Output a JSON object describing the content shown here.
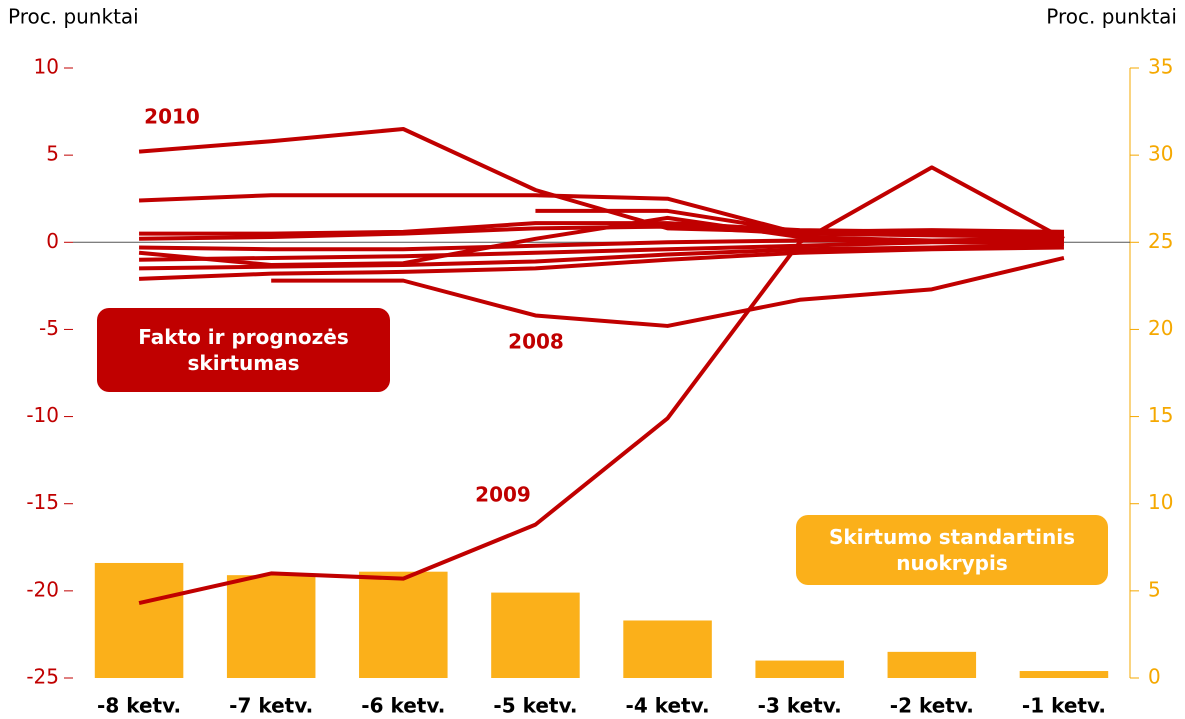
{
  "chart_data": {
    "type": "combo",
    "ylabel": "Proc. punktai",
    "y2label": "Proc. punktai",
    "categories": [
      "-8 ketv.",
      "-7 ketv.",
      "-6 ketv.",
      "-5 ketv.",
      "-4 ketv.",
      "-3 ketv.",
      "-2 ketv.",
      "-1 ketv."
    ],
    "ylim": [
      -25,
      10
    ],
    "yticks": [
      -25,
      -20,
      -15,
      -10,
      -5,
      0,
      5,
      10
    ],
    "y2lim": [
      0,
      35
    ],
    "y2ticks": [
      0,
      5,
      10,
      15,
      20,
      25,
      30,
      35
    ],
    "y_color": "#c00000",
    "y2_color": "#f5a800",
    "series": [
      {
        "type": "bar",
        "axis": "y2",
        "color": "#fbb01a",
        "values": [
          6.6,
          5.9,
          6.1,
          4.9,
          3.3,
          1.0,
          1.5,
          0.4
        ]
      },
      {
        "type": "line",
        "color": "#c00000",
        "values": [
          5.2,
          5.8,
          6.5,
          3.0,
          0.8,
          0.6,
          0.5,
          0.5
        ]
      },
      {
        "type": "line",
        "color": "#c00000",
        "values": [
          -20.7,
          -19.0,
          -19.3,
          -16.2,
          -10.1,
          0.0,
          4.3,
          0.2
        ]
      },
      {
        "type": "line",
        "color": "#c00000",
        "values": [
          null,
          -2.2,
          -2.2,
          -4.2,
          -4.8,
          -3.3,
          -2.7,
          -0.9
        ]
      },
      {
        "type": "line",
        "color": "#c00000",
        "values": [
          2.4,
          2.7,
          2.7,
          2.7,
          2.5,
          0.5,
          0.5,
          0.5
        ]
      },
      {
        "type": "line",
        "color": "#c00000",
        "values": [
          null,
          null,
          null,
          1.8,
          1.8,
          0.6,
          0.7,
          0.6
        ]
      },
      {
        "type": "line",
        "color": "#c00000",
        "values": [
          0.5,
          0.5,
          0.6,
          1.1,
          1.1,
          0.7,
          0.6,
          0.6
        ]
      },
      {
        "type": "line",
        "color": "#c00000",
        "values": [
          0.2,
          0.3,
          0.5,
          0.8,
          0.9,
          0.5,
          0.4,
          0.3
        ]
      },
      {
        "type": "line",
        "color": "#c00000",
        "values": [
          -0.3,
          -0.4,
          -0.4,
          -0.2,
          0.0,
          0.1,
          0.1,
          0.1
        ]
      },
      {
        "type": "line",
        "color": "#c00000",
        "values": [
          -0.6,
          -1.3,
          -1.2,
          0.2,
          1.4,
          0.3,
          0.1,
          0.2
        ]
      },
      {
        "type": "line",
        "color": "#c00000",
        "values": [
          -1.0,
          -0.9,
          -0.8,
          -0.6,
          -0.4,
          -0.2,
          0.0,
          0.0
        ]
      },
      {
        "type": "line",
        "color": "#c00000",
        "values": [
          -1.5,
          -1.4,
          -1.3,
          -1.1,
          -0.7,
          -0.4,
          -0.3,
          -0.1
        ]
      },
      {
        "type": "line",
        "color": "#c00000",
        "values": [
          -2.1,
          -1.8,
          -1.7,
          -1.5,
          -1.0,
          -0.6,
          -0.4,
          -0.3
        ]
      }
    ],
    "annotations": [
      "2010",
      "2008",
      "2009"
    ],
    "boxes": [
      {
        "text": "Fakto ir prognozės skirtumas",
        "color": "#c00000"
      },
      {
        "text": "Skirtumo standartinis nuokrypis",
        "color": "#fbb01a"
      }
    ]
  }
}
